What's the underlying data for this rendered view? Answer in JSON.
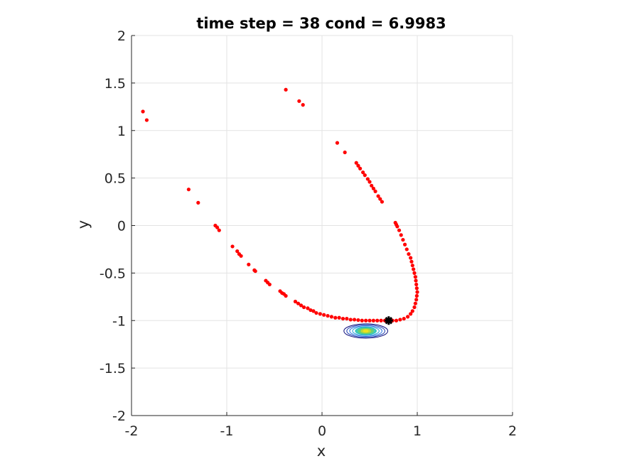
{
  "chart_data": {
    "type": "scatter",
    "title": "time step = 38 cond = 6.9983",
    "xlabel": "x",
    "ylabel": "y",
    "xlim": [
      -2,
      2
    ],
    "ylim": [
      -2,
      2
    ],
    "xticks": [
      -2,
      -1,
      0,
      1,
      2
    ],
    "yticks": [
      -2,
      -1.5,
      -1,
      -0.5,
      0,
      0.5,
      1,
      1.5,
      2
    ],
    "xtick_labels": [
      "-2",
      "-1",
      "0",
      "1",
      "2"
    ],
    "ytick_labels": [
      "-2",
      "-1.5",
      "-1",
      "-0.5",
      "0",
      "0.5",
      "1",
      "1.5",
      "2"
    ],
    "grid": true,
    "aspect": "equal",
    "series": [
      {
        "kind": "scatter",
        "color": "#ff0000",
        "points": [
          [
            -1.88,
            1.2
          ],
          [
            -1.84,
            1.11
          ],
          [
            -0.38,
            1.43
          ],
          [
            -0.24,
            1.31
          ],
          [
            -0.2,
            1.27
          ],
          [
            -1.4,
            0.38
          ],
          [
            -1.3,
            0.24
          ],
          [
            -1.12,
            0.0
          ],
          [
            -1.1,
            -0.02
          ],
          [
            -1.08,
            -0.05
          ],
          [
            -0.94,
            -0.22
          ],
          [
            -0.89,
            -0.27
          ],
          [
            -0.87,
            -0.3
          ],
          [
            -0.85,
            -0.32
          ],
          [
            -0.77,
            -0.41
          ],
          [
            -0.71,
            -0.47
          ],
          [
            -0.7,
            -0.48
          ],
          [
            -0.59,
            -0.58
          ],
          [
            -0.57,
            -0.6
          ],
          [
            -0.55,
            -0.62
          ],
          [
            -0.44,
            -0.69
          ],
          [
            -0.42,
            -0.71
          ],
          [
            -0.4,
            -0.72
          ],
          [
            -0.38,
            -0.74
          ],
          [
            -0.28,
            -0.8
          ],
          [
            -0.25,
            -0.82
          ],
          [
            -0.22,
            -0.84
          ],
          [
            -0.19,
            -0.86
          ],
          [
            -0.15,
            -0.87
          ],
          [
            -0.12,
            -0.89
          ],
          [
            -0.09,
            -0.9
          ],
          [
            -0.06,
            -0.92
          ],
          [
            -0.02,
            -0.93
          ],
          [
            0.02,
            -0.94
          ],
          [
            0.06,
            -0.95
          ],
          [
            0.1,
            -0.96
          ],
          [
            0.14,
            -0.97
          ],
          [
            0.18,
            -0.97
          ],
          [
            0.22,
            -0.98
          ],
          [
            0.26,
            -0.98
          ],
          [
            0.3,
            -0.99
          ],
          [
            0.34,
            -0.99
          ],
          [
            0.38,
            -0.995
          ],
          [
            0.42,
            -1.0
          ],
          [
            0.46,
            -1.0
          ],
          [
            0.5,
            -1.0
          ],
          [
            0.54,
            -1.0
          ],
          [
            0.58,
            -1.0
          ],
          [
            0.62,
            -1.0
          ],
          [
            0.66,
            -1.0
          ],
          [
            0.7,
            -1.0
          ],
          [
            0.74,
            -1.0
          ],
          [
            0.78,
            -1.0
          ],
          [
            0.82,
            -0.99
          ],
          [
            0.86,
            -0.98
          ],
          [
            0.9,
            -0.96
          ],
          [
            0.93,
            -0.93
          ],
          [
            0.95,
            -0.9
          ],
          [
            0.97,
            -0.86
          ],
          [
            0.98,
            -0.82
          ],
          [
            0.99,
            -0.78
          ],
          [
            0.995,
            -0.74
          ],
          [
            1.0,
            -0.7
          ],
          [
            0.995,
            -0.66
          ],
          [
            0.99,
            -0.62
          ],
          [
            0.985,
            -0.58
          ],
          [
            0.98,
            -0.54
          ],
          [
            0.97,
            -0.5
          ],
          [
            0.96,
            -0.46
          ],
          [
            0.95,
            -0.42
          ],
          [
            0.94,
            -0.38
          ],
          [
            0.93,
            -0.34
          ],
          [
            0.91,
            -0.3
          ],
          [
            0.89,
            -0.25
          ],
          [
            0.87,
            -0.2
          ],
          [
            0.85,
            -0.15
          ],
          [
            0.83,
            -0.1
          ],
          [
            0.81,
            -0.05
          ],
          [
            0.79,
            -0.01
          ],
          [
            0.78,
            0.01
          ],
          [
            0.77,
            0.03
          ],
          [
            0.63,
            0.25
          ],
          [
            0.61,
            0.28
          ],
          [
            0.59,
            0.31
          ],
          [
            0.56,
            0.36
          ],
          [
            0.54,
            0.39
          ],
          [
            0.52,
            0.42
          ],
          [
            0.5,
            0.46
          ],
          [
            0.48,
            0.49
          ],
          [
            0.45,
            0.53
          ],
          [
            0.43,
            0.56
          ],
          [
            0.4,
            0.6
          ],
          [
            0.38,
            0.63
          ],
          [
            0.36,
            0.66
          ],
          [
            0.24,
            0.77
          ],
          [
            0.16,
            0.87
          ]
        ]
      },
      {
        "kind": "marker",
        "color": "#000000",
        "point": [
          0.7,
          -1.0
        ]
      },
      {
        "kind": "contour",
        "center": [
          0.46,
          -1.11
        ],
        "levels": [
          {
            "rx": 0.23,
            "ry": 0.075,
            "color": "#0a0a7a"
          },
          {
            "rx": 0.2,
            "ry": 0.065,
            "color": "#1a3bb0"
          },
          {
            "rx": 0.17,
            "ry": 0.055,
            "color": "#1f6fe0"
          },
          {
            "rx": 0.14,
            "ry": 0.045,
            "color": "#1c9bd8"
          },
          {
            "rx": 0.11,
            "ry": 0.037,
            "color": "#20c0b0"
          },
          {
            "rx": 0.08,
            "ry": 0.028,
            "color": "#6fd06a"
          },
          {
            "rx": 0.05,
            "ry": 0.018,
            "color": "#c9d830"
          },
          {
            "rx": 0.025,
            "ry": 0.009,
            "color": "#f5e41a"
          }
        ]
      }
    ]
  }
}
